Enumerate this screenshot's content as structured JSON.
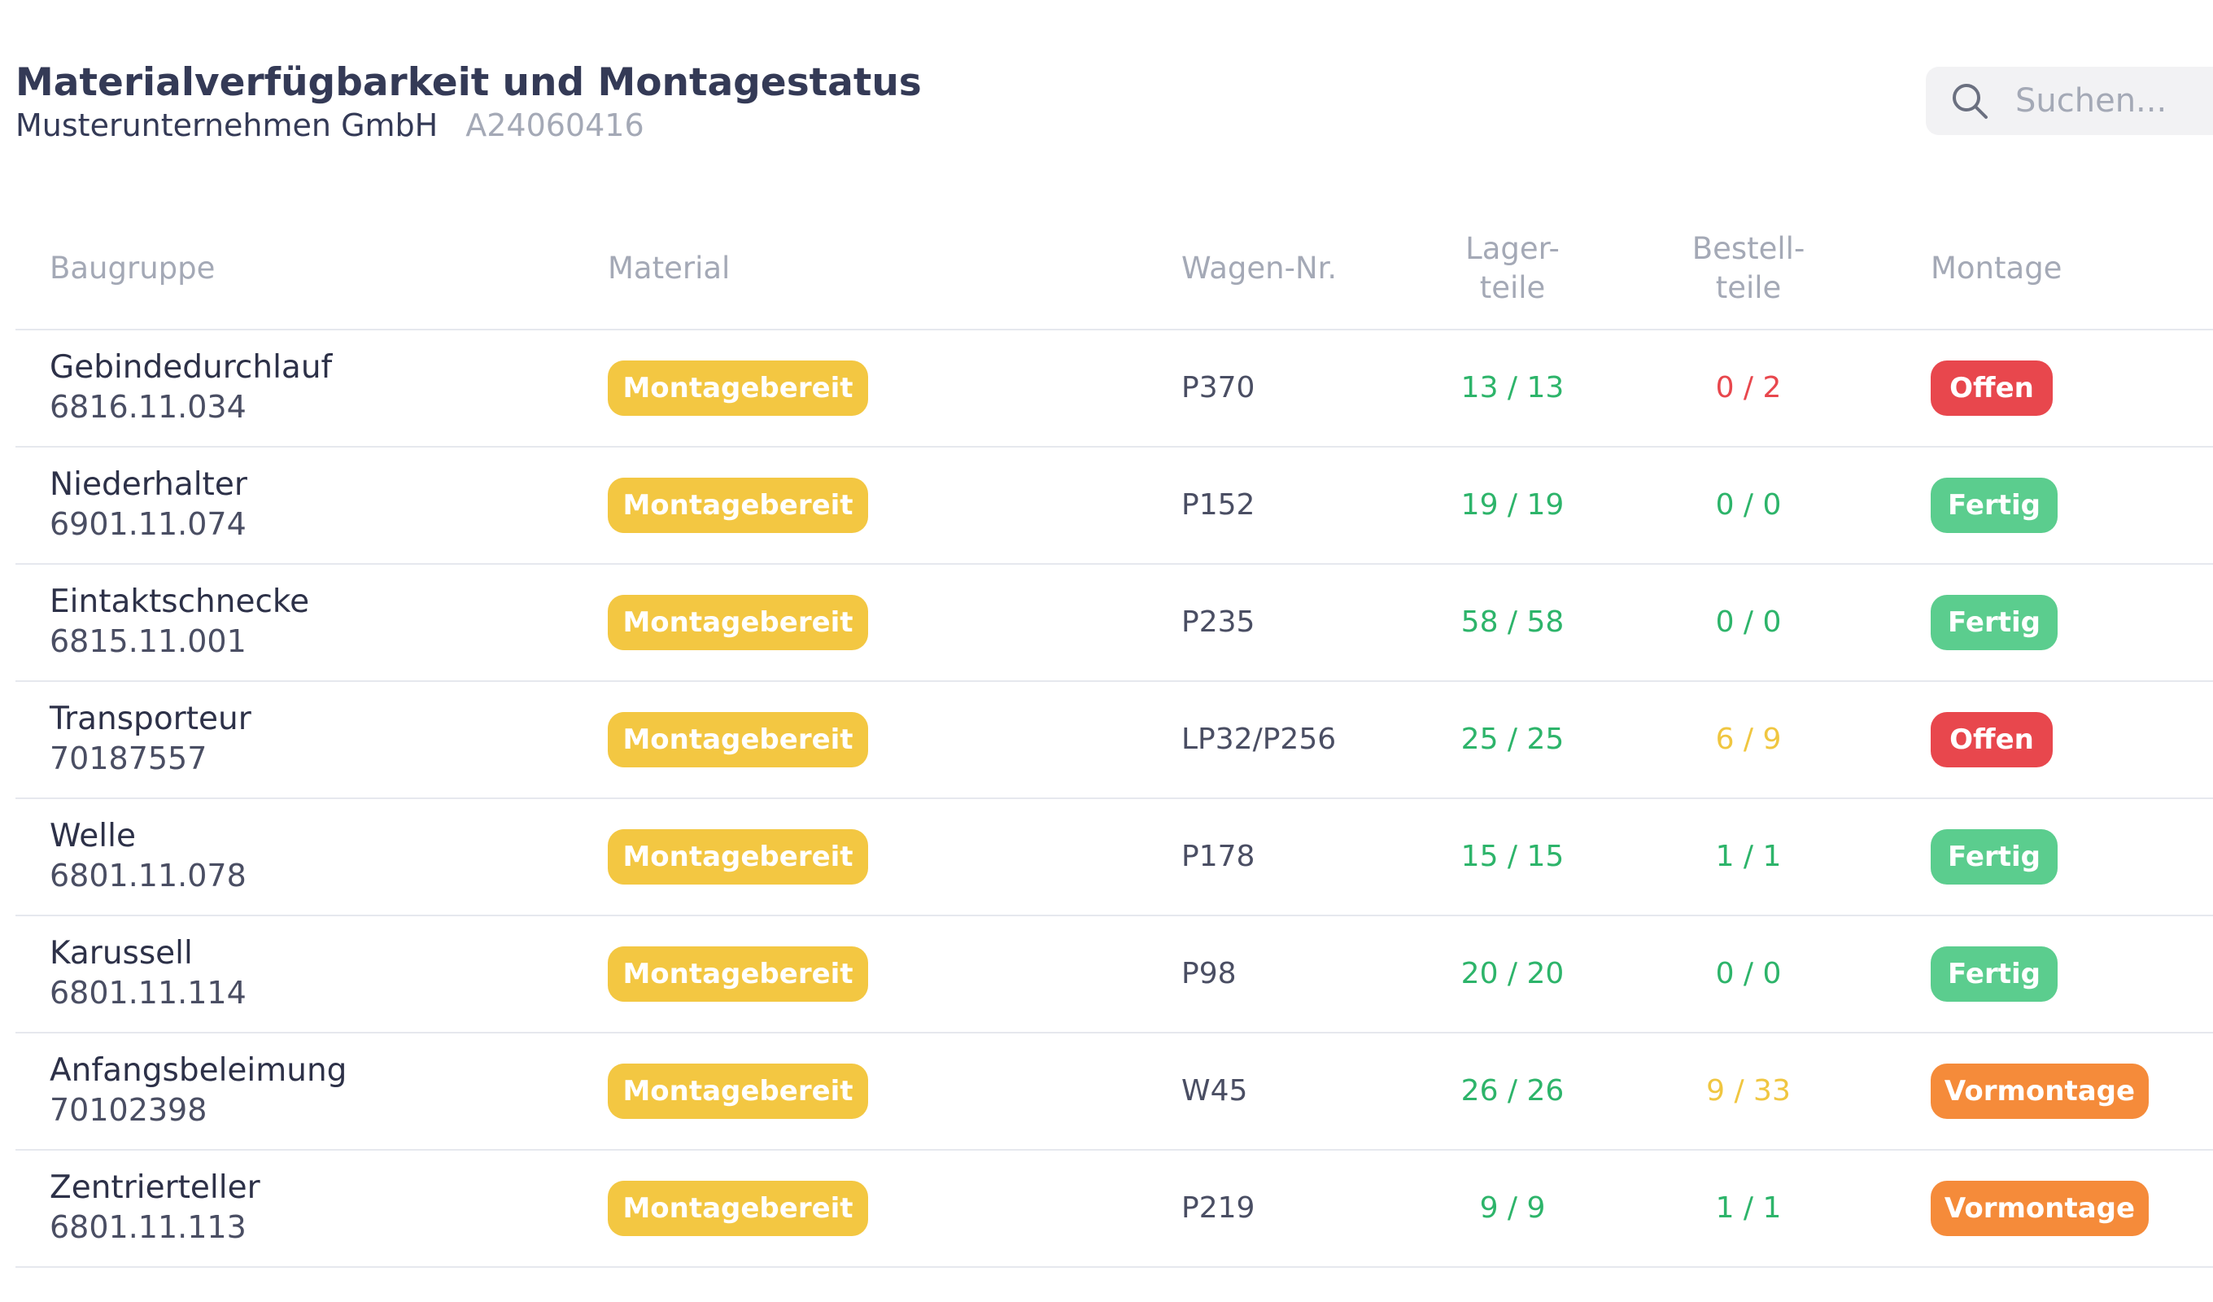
{
  "header": {
    "title": "Materialverfügbarkeit und Montagestatus",
    "company": "Musterunternehmen GmbH",
    "order_number": "A24060416"
  },
  "search": {
    "placeholder": "Suchen..."
  },
  "table": {
    "columns": {
      "assembly": "Baugruppe",
      "material": "Material",
      "wagon": "Wagen-Nr.",
      "stock_line1": "Lager-",
      "stock_line2": "teile",
      "order_line1": "Bestell-",
      "order_line2": "teile",
      "assembly_status": "Montage"
    },
    "rows": [
      {
        "name": "Gebindedurchlauf",
        "id": "6816.11.034",
        "material": "Montagebereit",
        "wagon": "P370",
        "stock": "13 / 13",
        "order": "0 / 2",
        "status": "Offen"
      },
      {
        "name": "Niederhalter",
        "id": "6901.11.074",
        "material": "Montagebereit",
        "wagon": "P152",
        "stock": "19 / 19",
        "order": "0 / 0",
        "status": "Fertig"
      },
      {
        "name": "Eintaktschnecke",
        "id": "6815.11.001",
        "material": "Montagebereit",
        "wagon": "P235",
        "stock": "58 / 58",
        "order": "0 / 0",
        "status": "Fertig"
      },
      {
        "name": "Transporteur",
        "id": "70187557",
        "material": "Montagebereit",
        "wagon": "LP32/P256",
        "stock": "25 / 25",
        "order": "6 / 9",
        "status": "Offen"
      },
      {
        "name": "Welle",
        "id": "6801.11.078",
        "material": "Montagebereit",
        "wagon": "P178",
        "stock": "15 / 15",
        "order": "1 / 1",
        "status": "Fertig"
      },
      {
        "name": "Karussell",
        "id": "6801.11.114",
        "material": "Montagebereit",
        "wagon": "P98",
        "stock": "20 / 20",
        "order": "0 / 0",
        "status": "Fertig"
      },
      {
        "name": "Anfangsbeleimung",
        "id": "70102398",
        "material": "Montagebereit",
        "wagon": "W45",
        "stock": "26 / 26",
        "order": "9 / 33",
        "status": "Vormontage"
      },
      {
        "name": "Zentrierteller",
        "id": "6801.11.113",
        "material": "Montagebereit",
        "wagon": "P219",
        "stock": "9 / 9",
        "order": "1 / 1",
        "status": "Vormontage"
      }
    ]
  },
  "colors": {
    "material_badge": "#f3c742",
    "status_offen": "#e8474d",
    "status_fertig": "#5bcd8e",
    "status_vormontage": "#f58b3a",
    "count_complete": "#2db46a",
    "count_missing_none": "#e8474d",
    "count_partial": "#f0c640"
  }
}
